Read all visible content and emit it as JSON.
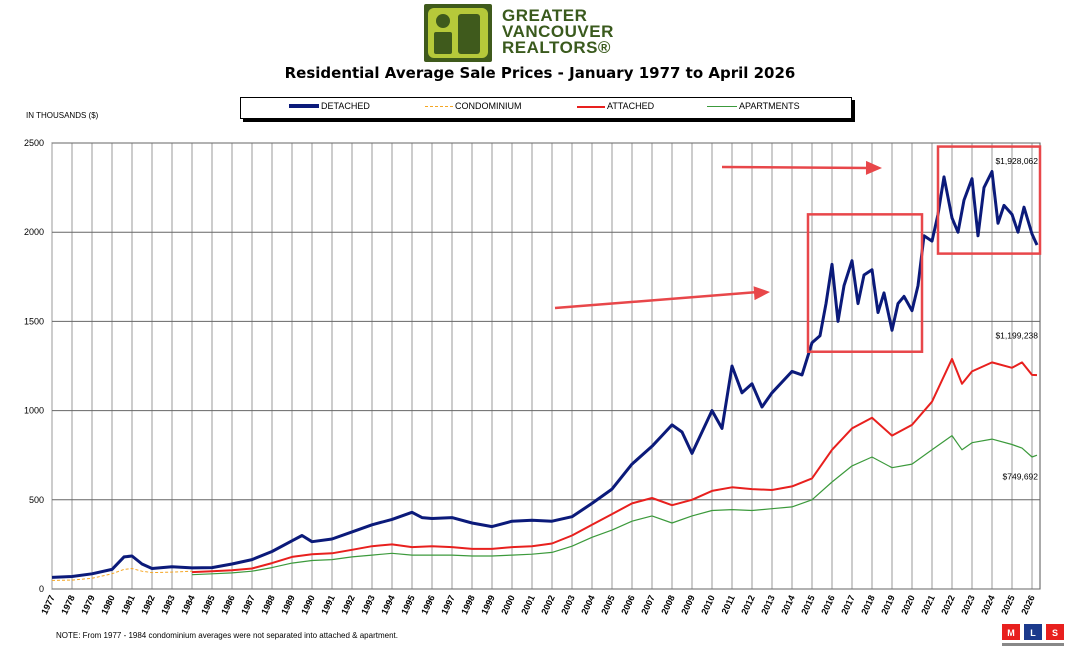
{
  "header": {
    "logo_line1": "GREATER",
    "logo_line2": "VANCOUVER",
    "logo_line3": "REALTORS®",
    "title": "Residential Average Sale Prices  -  January 1977 to April 2026"
  },
  "units_label": "IN THOUSANDS ($)",
  "note": "NOTE:  From 1977 - 1984 condominium averages were not separated into attached & apartment.",
  "mls_label": "MLS",
  "colors": {
    "detached": "#0b1a7a",
    "condominium": "#f5a623",
    "attached": "#e8201e",
    "apartments": "#3c9a3c",
    "highlight": "#e8474a",
    "logo": "#6b8e23"
  },
  "chart_data": {
    "type": "line",
    "title": "Residential Average Sale Prices  -  January 1977 to April 2026",
    "xlabel": "",
    "ylabel": "IN THOUSANDS ($)",
    "ylim": [
      0,
      2500
    ],
    "xlim": [
      1977,
      2026.4
    ],
    "yticks": [
      "0",
      "500",
      "1000",
      "1500",
      "2000",
      "2500"
    ],
    "xticks": [
      "1977",
      "1978",
      "1979",
      "1980",
      "1981",
      "1982",
      "1983",
      "1984",
      "1985",
      "1986",
      "1987",
      "1988",
      "1989",
      "1990",
      "1991",
      "1992",
      "1993",
      "1994",
      "1995",
      "1996",
      "1997",
      "1998",
      "1999",
      "2000",
      "2001",
      "2002",
      "2003",
      "2004",
      "2005",
      "2006",
      "2007",
      "2008",
      "2009",
      "2010",
      "2011",
      "2012",
      "2013",
      "2014",
      "2015",
      "2016",
      "2017",
      "2018",
      "2019",
      "2020",
      "2021",
      "2022",
      "2023",
      "2024",
      "2025",
      "2026"
    ],
    "grid": true,
    "legend_position": "top",
    "series": [
      {
        "name": "DETACHED",
        "x": [
          1977,
          1978,
          1979,
          1980,
          1980.6,
          1981,
          1981.5,
          1982,
          1982.5,
          1983,
          1984,
          1985,
          1986,
          1987,
          1988,
          1989,
          1989.5,
          1990,
          1991,
          1992,
          1993,
          1994,
          1995,
          1995.5,
          1996,
          1997,
          1998,
          1999,
          2000,
          2001,
          2002,
          2003,
          2004,
          2005,
          2006,
          2007,
          2007.5,
          2008,
          2008.5,
          2009,
          2010,
          2010.5,
          2011,
          2011.5,
          2012,
          2012.5,
          2013,
          2014,
          2014.5,
          2015,
          2015.4,
          2015.7,
          2016,
          2016.3,
          2016.6,
          2017,
          2017.3,
          2017.6,
          2018,
          2018.3,
          2018.6,
          2019,
          2019.3,
          2019.6,
          2020,
          2020.3,
          2020.6,
          2021,
          2021.3,
          2021.6,
          2022,
          2022.3,
          2022.6,
          2023,
          2023.3,
          2023.6,
          2024,
          2024.3,
          2024.6,
          2025,
          2025.3,
          2025.6,
          2026,
          2026.25
        ],
        "values": [
          65,
          70,
          85,
          110,
          180,
          185,
          140,
          115,
          120,
          125,
          118,
          120,
          140,
          165,
          210,
          270,
          300,
          265,
          280,
          320,
          360,
          390,
          430,
          400,
          395,
          400,
          370,
          350,
          380,
          385,
          380,
          405,
          480,
          560,
          700,
          800,
          860,
          920,
          880,
          760,
          1000,
          900,
          1250,
          1100,
          1150,
          1020,
          1100,
          1220,
          1200,
          1380,
          1420,
          1600,
          1820,
          1500,
          1700,
          1840,
          1600,
          1760,
          1790,
          1550,
          1660,
          1450,
          1600,
          1640,
          1560,
          1700,
          1980,
          1950,
          2100,
          2310,
          2080,
          2000,
          2180,
          2300,
          1980,
          2250,
          2340,
          2050,
          2150,
          2100,
          2000,
          2140,
          1990,
          1928
        ]
      },
      {
        "name": "CONDOMINIUM",
        "x": [
          1977,
          1978,
          1979,
          1980,
          1980.6,
          1981,
          1981.5,
          1982,
          1983,
          1984
        ],
        "values": [
          48,
          50,
          60,
          85,
          110,
          115,
          100,
          92,
          95,
          100
        ]
      },
      {
        "name": "ATTACHED",
        "x": [
          1984,
          1985,
          1986,
          1987,
          1988,
          1989,
          1990,
          1991,
          1992,
          1993,
          1994,
          1995,
          1996,
          1997,
          1998,
          1999,
          2000,
          2001,
          2002,
          2003,
          2004,
          2005,
          2006,
          2007,
          2008,
          2009,
          2010,
          2011,
          2012,
          2013,
          2014,
          2015,
          2016,
          2017,
          2018,
          2019,
          2020,
          2021,
          2022,
          2022.5,
          2023,
          2024,
          2025,
          2025.5,
          2026,
          2026.25
        ],
        "values": [
          95,
          100,
          105,
          115,
          145,
          180,
          195,
          200,
          220,
          240,
          250,
          235,
          240,
          235,
          225,
          225,
          235,
          240,
          255,
          300,
          360,
          420,
          480,
          510,
          470,
          500,
          550,
          570,
          560,
          555,
          575,
          620,
          780,
          900,
          960,
          860,
          920,
          1050,
          1290,
          1150,
          1220,
          1270,
          1240,
          1270,
          1200,
          1199
        ]
      },
      {
        "name": "APARTMENTS",
        "x": [
          1984,
          1985,
          1986,
          1987,
          1988,
          1989,
          1990,
          1991,
          1992,
          1993,
          1994,
          1995,
          1996,
          1997,
          1998,
          1999,
          2000,
          2001,
          2002,
          2003,
          2004,
          2005,
          2006,
          2007,
          2008,
          2009,
          2010,
          2011,
          2012,
          2013,
          2014,
          2015,
          2016,
          2017,
          2018,
          2019,
          2020,
          2021,
          2022,
          2022.5,
          2023,
          2024,
          2025,
          2025.5,
          2026,
          2026.25
        ],
        "values": [
          80,
          85,
          90,
          100,
          120,
          145,
          160,
          165,
          180,
          190,
          200,
          190,
          190,
          190,
          185,
          185,
          190,
          195,
          205,
          240,
          290,
          330,
          380,
          410,
          370,
          410,
          440,
          445,
          440,
          450,
          460,
          500,
          600,
          690,
          740,
          680,
          700,
          780,
          860,
          780,
          820,
          840,
          810,
          790,
          740,
          750
        ]
      }
    ],
    "annotations": [
      "$1,928,062",
      "$1,199,238",
      "$749,692"
    ]
  }
}
